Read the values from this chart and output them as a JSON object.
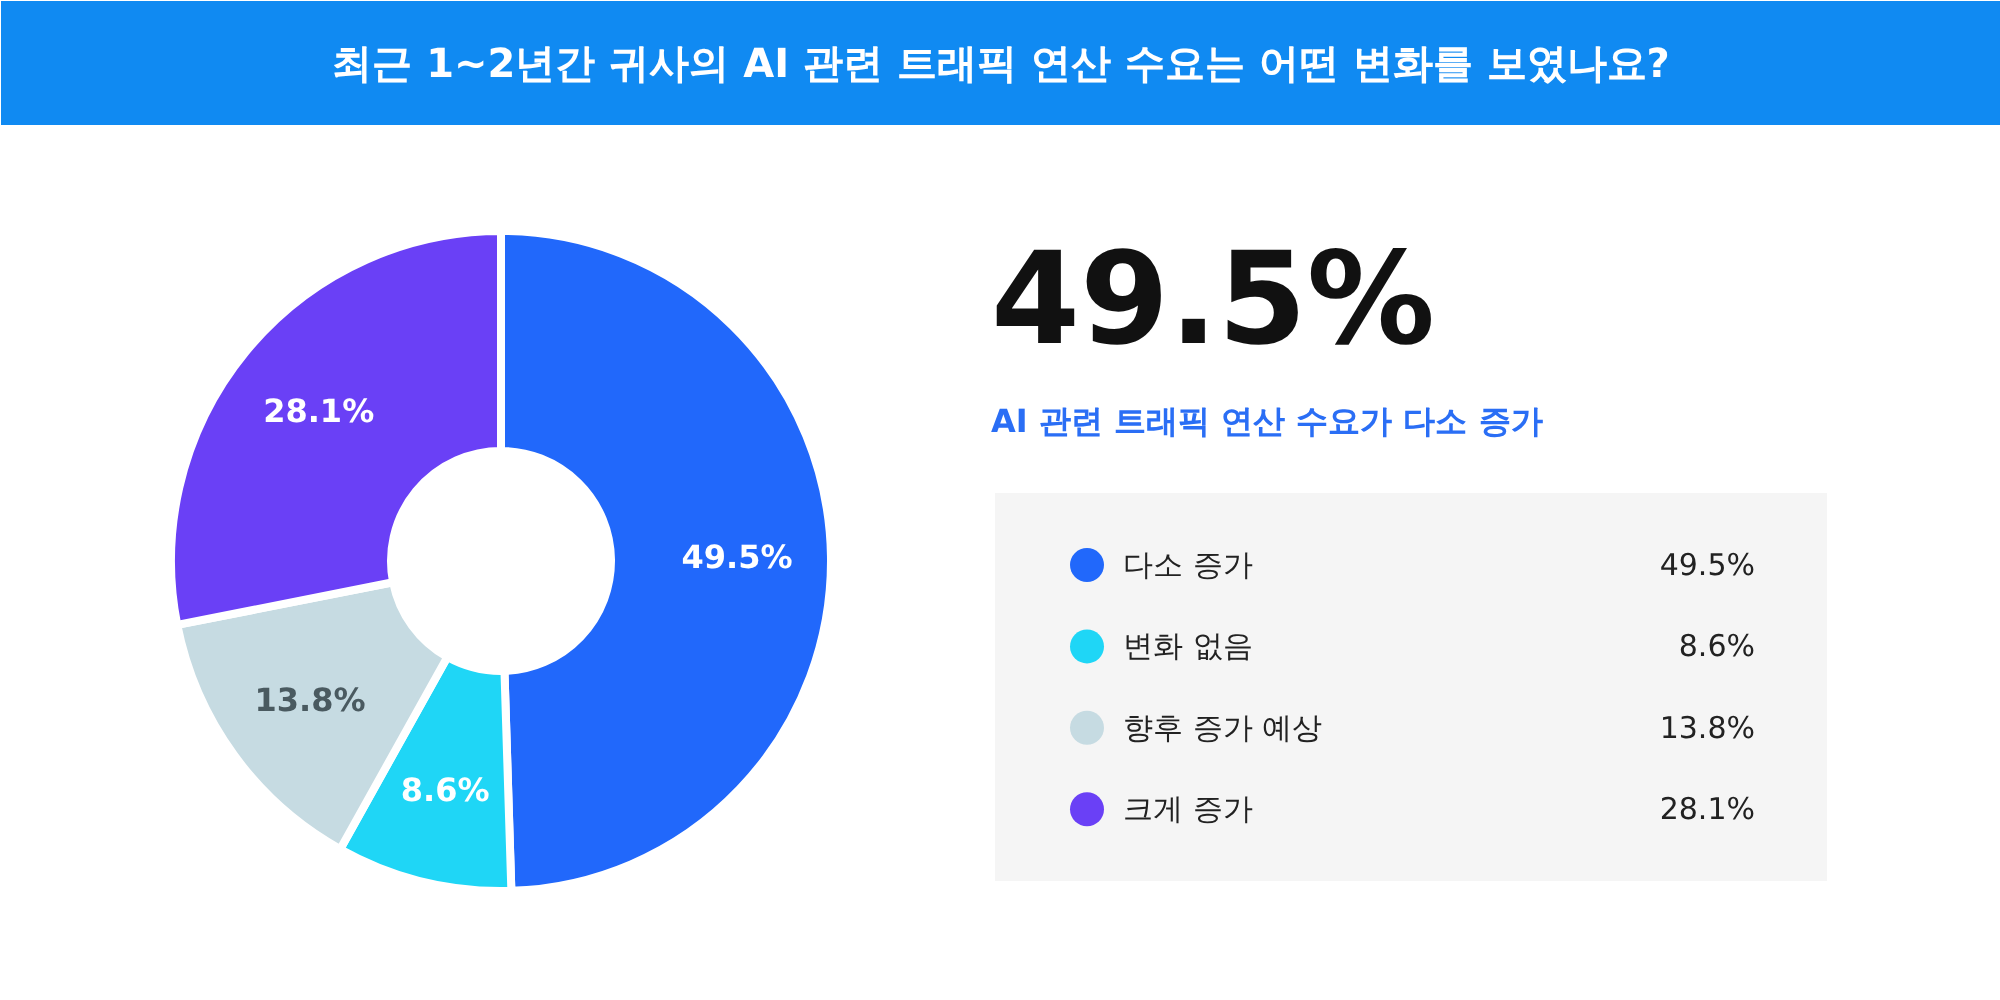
{
  "chart_data": {
    "type": "donut",
    "title": "최근 1~2년간 귀사의 AI 관련 트래픽 연산 수요는 어떤 변화를 보였나요?",
    "annotations": [
      "49.5%",
      "AI 관련 트래픽 연산 수요가 다소 증가"
    ],
    "categories": [
      "다소 증가",
      "변화 없음",
      "향후 증가 예상",
      "크게 증가"
    ],
    "values": [
      49.5,
      8.6,
      13.8,
      28.1
    ],
    "colors": [
      "#2168fb",
      "#1fd6f6",
      "#c6dbe2",
      "#6a40f6"
    ],
    "value_labels": [
      "49.5%",
      "8.6%",
      "13.8%",
      "28.1%"
    ],
    "legend": "right"
  }
}
